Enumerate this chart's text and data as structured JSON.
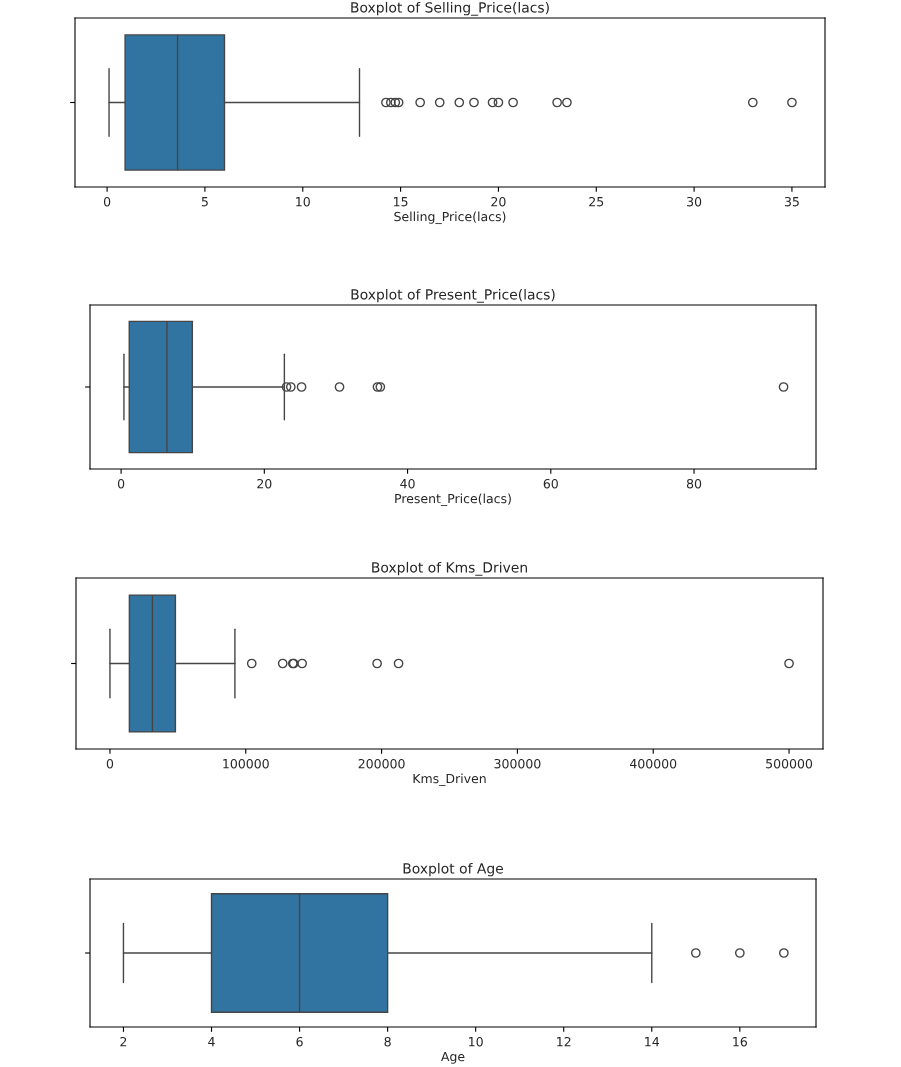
{
  "chart_data": [
    {
      "type": "box",
      "orientation": "horizontal",
      "title": "Boxplot of Selling_Price(lacs)",
      "xlabel": "Selling_Price(lacs)",
      "categories": [
        null
      ],
      "color": "#3274a1",
      "xlim": [
        -1.64,
        36.69
      ],
      "xticks": [
        0,
        5,
        10,
        15,
        20,
        25,
        30,
        35
      ],
      "boxes": [
        {
          "low": 0.1,
          "q1": 0.92,
          "median": 3.6,
          "q3": 6.0,
          "high": 12.9,
          "outliers": [
            14.25,
            14.5,
            14.73,
            14.9,
            16.0,
            17.0,
            18.0,
            18.75,
            19.7,
            20.0,
            20.75,
            23.0,
            23.5,
            33.0,
            35.0
          ]
        }
      ]
    },
    {
      "type": "box",
      "orientation": "horizontal",
      "title": "Boxplot of Present_Price(lacs)",
      "xlabel": "Present_Price(lacs)",
      "categories": [
        null
      ],
      "color": "#3274a1",
      "xlim": [
        -4.34,
        97.03
      ],
      "xticks": [
        0,
        20,
        40,
        60,
        80
      ],
      "boxes": [
        {
          "low": 0.4,
          "q1": 1.14,
          "median": 6.4,
          "q3": 9.95,
          "high": 22.8,
          "outliers": [
            23.1,
            23.7,
            25.2,
            30.5,
            35.8,
            36.2,
            92.5
          ]
        }
      ]
    },
    {
      "type": "box",
      "orientation": "horizontal",
      "title": "Boxplot of Kms_Driven",
      "xlabel": "Kms_Driven",
      "categories": [
        null
      ],
      "color": "#3274a1",
      "xlim": [
        -25000,
        525000
      ],
      "xticks": [
        0,
        100000,
        200000,
        300000,
        400000,
        500000
      ],
      "boxes": [
        {
          "low": 0,
          "q1": 14300,
          "median": 31250,
          "q3": 48200,
          "high": 92000,
          "outliers": [
            104400,
            127200,
            134600,
            135300,
            141500,
            196700,
            212500,
            500000
          ]
        }
      ]
    },
    {
      "type": "box",
      "orientation": "horizontal",
      "title": "Boxplot of Age",
      "xlabel": "Age",
      "categories": [
        null
      ],
      "color": "#3274a1",
      "xlim": [
        1.24,
        17.73
      ],
      "xticks": [
        2,
        4,
        6,
        8,
        10,
        12,
        14,
        16
      ],
      "boxes": [
        {
          "low": 2,
          "q1": 4,
          "median": 6,
          "q3": 8,
          "high": 14,
          "outliers": [
            15,
            16,
            17
          ]
        }
      ]
    }
  ]
}
